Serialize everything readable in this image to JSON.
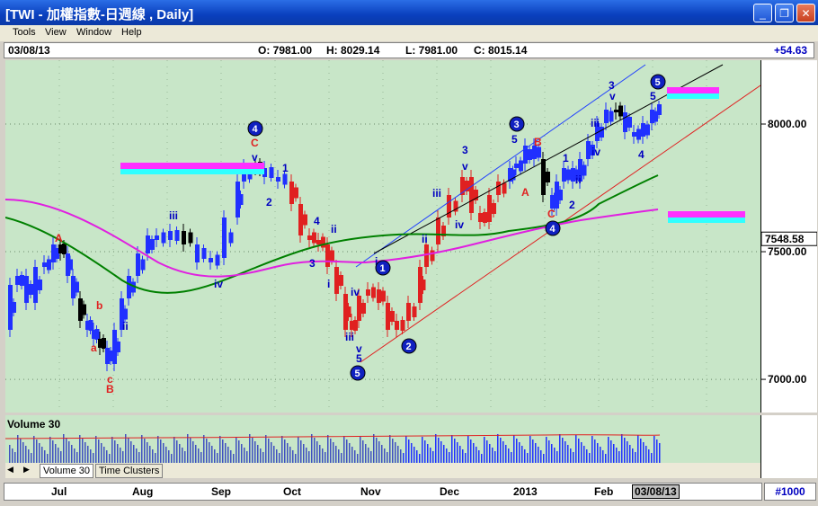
{
  "window": {
    "title": "[TWI - 加權指數-日週線 , Daily]",
    "minimize": "_",
    "maximize": "❐",
    "close": "✕"
  },
  "menu": [
    "Tools",
    "View",
    "Window",
    "Help"
  ],
  "info": {
    "date": "03/08/13",
    "open": "O: 7981.00",
    "high": "H: 8029.14",
    "low": "L: 7981.00",
    "close": "C: 8015.14",
    "change": "+54.63"
  },
  "chart_data": {
    "type": "candlestick",
    "y_ticks": [
      8000,
      7500,
      7000
    ],
    "y_tick_labels": [
      "8000.00",
      "7500.00",
      "7000.00"
    ],
    "ylim": [
      6870,
      8250
    ],
    "last_price_label": "7548.58",
    "x_months": [
      "Jul",
      "Aug",
      "Sep",
      "Oct",
      "Nov",
      "Dec",
      "2013",
      "Feb"
    ],
    "x_cursor": "03/08/13",
    "bar_count": "#1000",
    "wave_labels": [
      "A",
      "b",
      "a",
      "c",
      "B",
      "iii",
      "iv",
      "ii",
      "4",
      "C",
      "v",
      "1",
      "2",
      "4",
      "3",
      "ii",
      "i",
      "iii",
      "iv",
      "v",
      "5",
      "1",
      "2",
      "i",
      "ii",
      "iii",
      "iv",
      "3",
      "iv",
      "v",
      "5",
      "B",
      "A",
      "C",
      "4",
      "3",
      "1",
      "ii",
      "2",
      "iii",
      "iv",
      "v",
      "3",
      "4",
      "5"
    ],
    "volume_label": "Volume 30",
    "tabs": [
      "Volume 30",
      "Time Clusters"
    ]
  }
}
